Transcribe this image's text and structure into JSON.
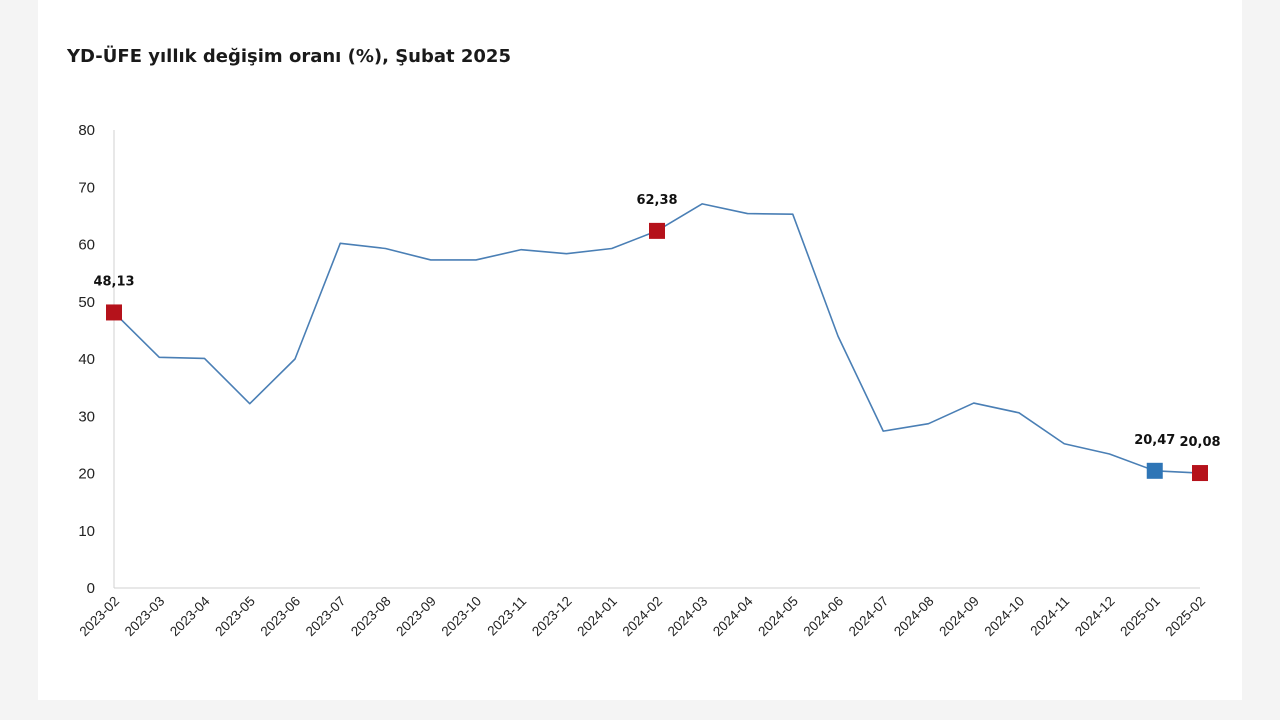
{
  "chart_data": {
    "type": "line",
    "title": "YD-ÜFE yıllık değişim oranı (%), Şubat 2025",
    "xlabel": "",
    "ylabel": "",
    "ylim": [
      0,
      80
    ],
    "yticks": [
      0,
      10,
      20,
      30,
      40,
      50,
      60,
      70,
      80
    ],
    "grid": false,
    "categories": [
      "2023-02",
      "2023-03",
      "2023-04",
      "2023-05",
      "2023-06",
      "2023-07",
      "2023-08",
      "2023-09",
      "2023-10",
      "2023-11",
      "2023-12",
      "2024-01",
      "2024-02",
      "2024-03",
      "2024-04",
      "2024-05",
      "2024-06",
      "2024-07",
      "2024-08",
      "2024-09",
      "2024-10",
      "2024-11",
      "2024-12",
      "2025-01",
      "2025-02"
    ],
    "series": [
      {
        "name": "YD-ÜFE yıllık değişim oranı (%)",
        "color": "#4a7fb5",
        "values": [
          48.13,
          40.3,
          40.1,
          32.2,
          40.0,
          60.2,
          59.3,
          57.3,
          57.3,
          59.1,
          58.4,
          59.3,
          62.38,
          67.1,
          65.4,
          65.3,
          44.0,
          27.4,
          28.7,
          32.3,
          30.6,
          25.2,
          23.4,
          20.47,
          20.08
        ]
      }
    ],
    "markers": [
      {
        "index": 0,
        "value": 48.13,
        "label": "48,13",
        "color": "#b5121b"
      },
      {
        "index": 12,
        "value": 62.38,
        "label": "62,38",
        "color": "#b5121b"
      },
      {
        "index": 23,
        "value": 20.47,
        "label": "20,47",
        "color": "#2e75b6"
      },
      {
        "index": 24,
        "value": 20.08,
        "label": "20,08",
        "color": "#b5121b"
      }
    ]
  }
}
